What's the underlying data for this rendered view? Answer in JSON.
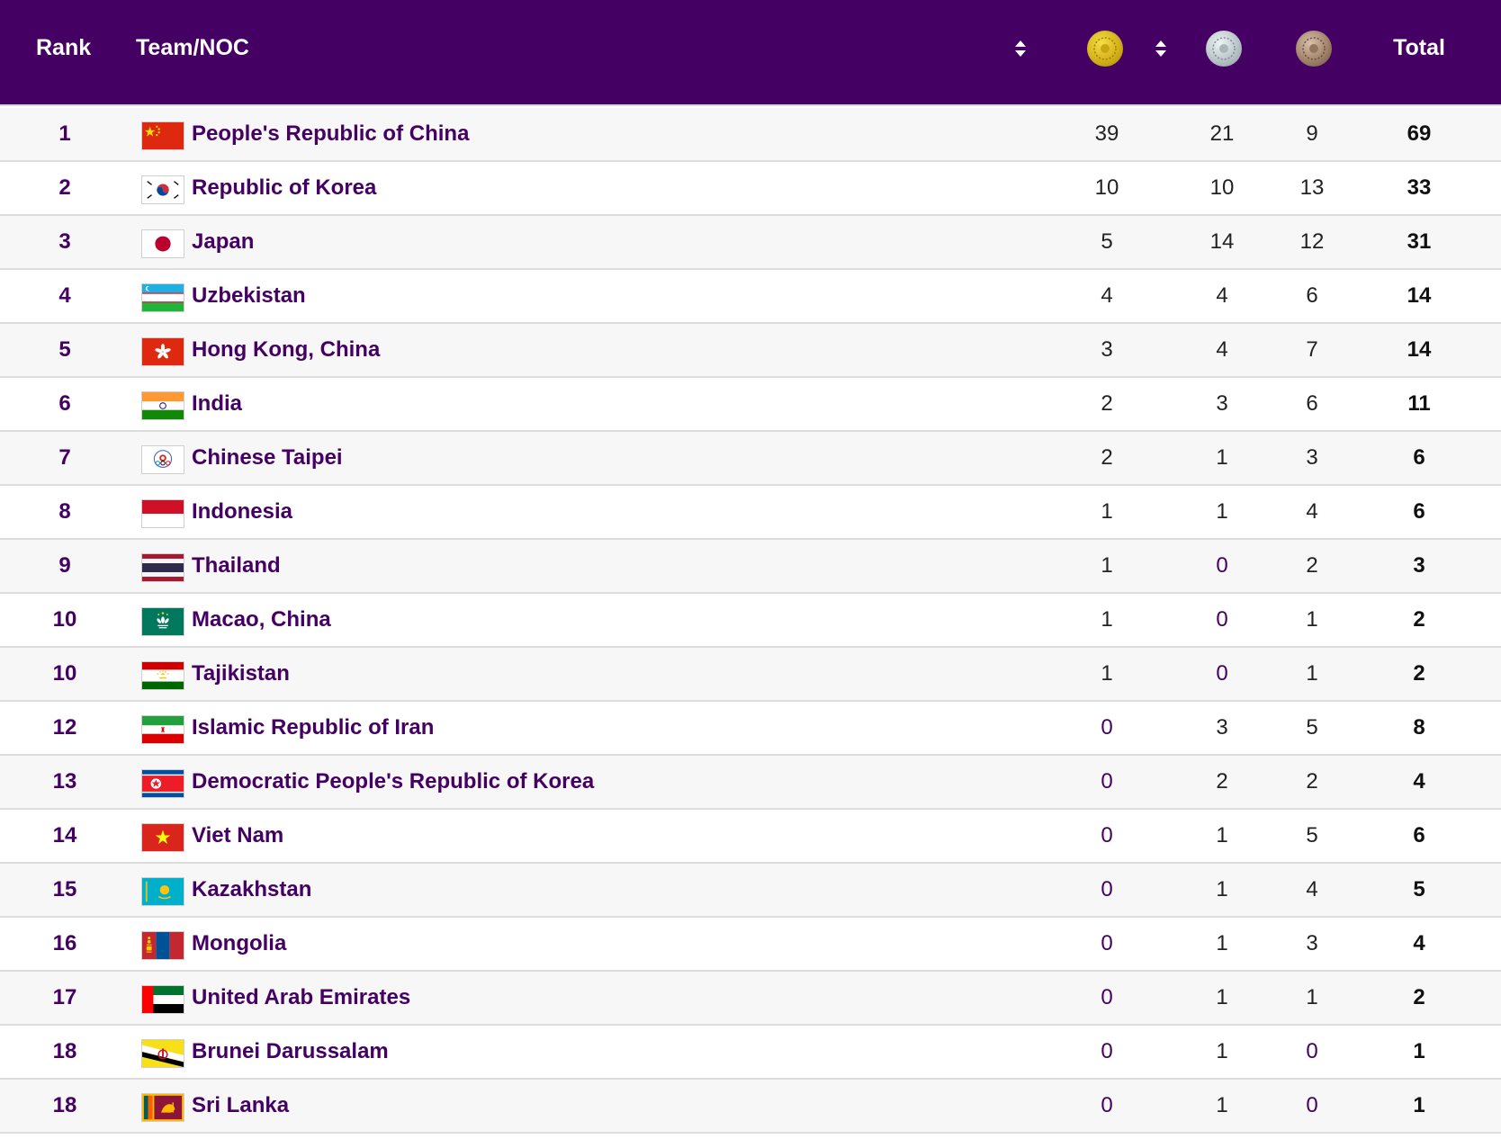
{
  "header": {
    "rank_label": "Rank",
    "team_label": "Team/NOC",
    "total_label": "Total",
    "sort_icons": [
      "sort-icon",
      "sort-icon"
    ],
    "medal_icons": [
      "gold-medal-icon",
      "silver-medal-icon",
      "bronze-medal-icon"
    ],
    "colors": {
      "bar": "#450063",
      "gold": "#d4b11a",
      "silver": "#b9c4c8",
      "bronze": "#a1836a"
    }
  },
  "rows": [
    {
      "rank": "1",
      "team": "People's Republic of China",
      "flag": "CHN",
      "gold": "39",
      "silver": "21",
      "bronze": "9",
      "total": "69"
    },
    {
      "rank": "2",
      "team": "Republic of Korea",
      "flag": "KOR",
      "gold": "10",
      "silver": "10",
      "bronze": "13",
      "total": "33"
    },
    {
      "rank": "3",
      "team": "Japan",
      "flag": "JPN",
      "gold": "5",
      "silver": "14",
      "bronze": "12",
      "total": "31"
    },
    {
      "rank": "4",
      "team": "Uzbekistan",
      "flag": "UZB",
      "gold": "4",
      "silver": "4",
      "bronze": "6",
      "total": "14"
    },
    {
      "rank": "5",
      "team": "Hong Kong, China",
      "flag": "HKG",
      "gold": "3",
      "silver": "4",
      "bronze": "7",
      "total": "14"
    },
    {
      "rank": "6",
      "team": "India",
      "flag": "IND",
      "gold": "2",
      "silver": "3",
      "bronze": "6",
      "total": "11"
    },
    {
      "rank": "7",
      "team": "Chinese Taipei",
      "flag": "TPE",
      "gold": "2",
      "silver": "1",
      "bronze": "3",
      "total": "6"
    },
    {
      "rank": "8",
      "team": "Indonesia",
      "flag": "INA",
      "gold": "1",
      "silver": "1",
      "bronze": "4",
      "total": "6"
    },
    {
      "rank": "9",
      "team": "Thailand",
      "flag": "THA",
      "gold": "1",
      "silver": "0",
      "bronze": "2",
      "total": "3"
    },
    {
      "rank": "10",
      "team": "Macao, China",
      "flag": "MAC",
      "gold": "1",
      "silver": "0",
      "bronze": "1",
      "total": "2"
    },
    {
      "rank": "10",
      "team": "Tajikistan",
      "flag": "TJK",
      "gold": "1",
      "silver": "0",
      "bronze": "1",
      "total": "2"
    },
    {
      "rank": "12",
      "team": "Islamic Republic of Iran",
      "flag": "IRI",
      "gold": "0",
      "silver": "3",
      "bronze": "5",
      "total": "8"
    },
    {
      "rank": "13",
      "team": "Democratic People's Republic of Korea",
      "flag": "PRK",
      "gold": "0",
      "silver": "2",
      "bronze": "2",
      "total": "4"
    },
    {
      "rank": "14",
      "team": "Viet Nam",
      "flag": "VIE",
      "gold": "0",
      "silver": "1",
      "bronze": "5",
      "total": "6"
    },
    {
      "rank": "15",
      "team": "Kazakhstan",
      "flag": "KAZ",
      "gold": "0",
      "silver": "1",
      "bronze": "4",
      "total": "5"
    },
    {
      "rank": "16",
      "team": "Mongolia",
      "flag": "MGL",
      "gold": "0",
      "silver": "1",
      "bronze": "3",
      "total": "4"
    },
    {
      "rank": "17",
      "team": "United Arab Emirates",
      "flag": "UAE",
      "gold": "0",
      "silver": "1",
      "bronze": "1",
      "total": "2"
    },
    {
      "rank": "18",
      "team": "Brunei Darussalam",
      "flag": "BRU",
      "gold": "0",
      "silver": "1",
      "bronze": "0",
      "total": "1"
    },
    {
      "rank": "18",
      "team": "Sri Lanka",
      "flag": "SRI",
      "gold": "0",
      "silver": "1",
      "bronze": "0",
      "total": "1"
    }
  ]
}
